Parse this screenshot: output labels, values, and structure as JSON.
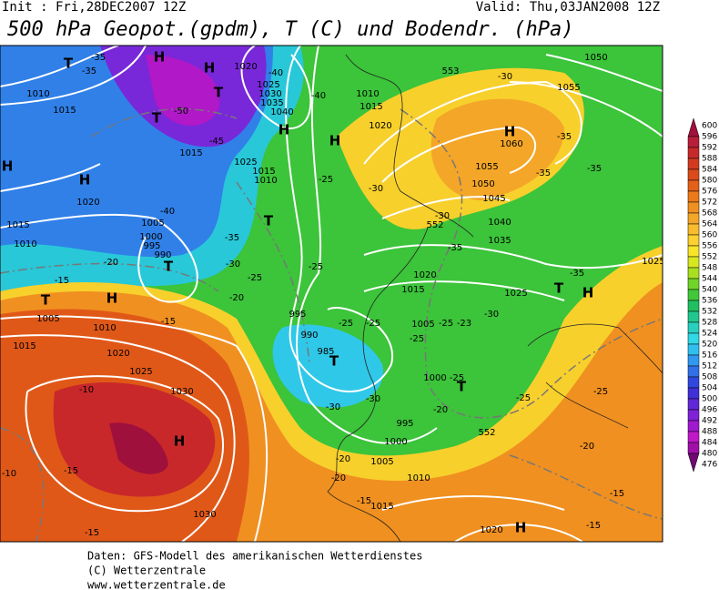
{
  "header": {
    "init": "Init : Fri,28DEC2007 12Z",
    "valid": "Valid: Thu,03JAN2008 12Z",
    "title": "500 hPa Geopot.(gpdm), T (C) und Bodendr. (hPa)"
  },
  "footer": [
    "Daten: GFS-Modell des amerikanischen Wetterdienstes",
    "(C) Wetterzentrale",
    "www.wetterzentrale.de"
  ],
  "map": {
    "labels": [
      "H",
      "T",
      "H",
      "T",
      "T",
      "H",
      "H",
      "H",
      "H",
      "H",
      "T",
      "T",
      "T",
      "H",
      "T",
      "T",
      "H",
      "H",
      "T",
      "H",
      "1010",
      "1015",
      "1015",
      "1020",
      "1025",
      "1030",
      "1035",
      "1040",
      "1025",
      "1015",
      "1010",
      "1005",
      "1000",
      "995",
      "990",
      "1020",
      "1015",
      "1010",
      "1005",
      "1010",
      "1015",
      "1020",
      "1025",
      "1030",
      "995",
      "990",
      "985",
      "1000",
      "995",
      "1000",
      "1005",
      "1010",
      "1015",
      "1030",
      "1020",
      "1020",
      "1015",
      "1005",
      "1025",
      "1035",
      "1040",
      "1045",
      "1050",
      "1055",
      "1060",
      "1055",
      "1050",
      "1020",
      "1015",
      "1010",
      "1025",
      "-35",
      "-35",
      "-40",
      "-40",
      "-45",
      "-50",
      "-25",
      "-30",
      "-30",
      "-35",
      "-35",
      "-40",
      "-35",
      "-30",
      "-25",
      "-20",
      "-15",
      "-15",
      "-20",
      "-25",
      "-25",
      "-25",
      "-30",
      "-30",
      "-30",
      "-25",
      "-20",
      "-20",
      "-10",
      "-15",
      "-15",
      "-10",
      "-25",
      "-20",
      "-15",
      "-15",
      "-35",
      "-35",
      "-35",
      "-30",
      "-25",
      "-23",
      "-25",
      "-20",
      "-15",
      "-25",
      "552",
      "552",
      "553"
    ]
  },
  "colorbar": {
    "levels": [
      600,
      596,
      592,
      588,
      584,
      580,
      576,
      572,
      568,
      564,
      560,
      556,
      552,
      548,
      544,
      540,
      536,
      532,
      528,
      524,
      520,
      516,
      512,
      508,
      504,
      500,
      496,
      492,
      488,
      484,
      480,
      476
    ],
    "colors": [
      "#a0103c",
      "#b81e3a",
      "#c8282a",
      "#d23a20",
      "#dc4a1a",
      "#e46018",
      "#ec7a18",
      "#f09020",
      "#f4a628",
      "#f8bc2c",
      "#fcd030",
      "#f8e428",
      "#d8e820",
      "#a8e020",
      "#70d428",
      "#40c838",
      "#20c060",
      "#20c890",
      "#28d0c0",
      "#30d8e8",
      "#30c0f0",
      "#3098f0",
      "#3070e8",
      "#3048e0",
      "#4030d8",
      "#6028d8",
      "#8020d8",
      "#a018d0",
      "#c018c8",
      "#a010a8",
      "#700870"
    ]
  }
}
